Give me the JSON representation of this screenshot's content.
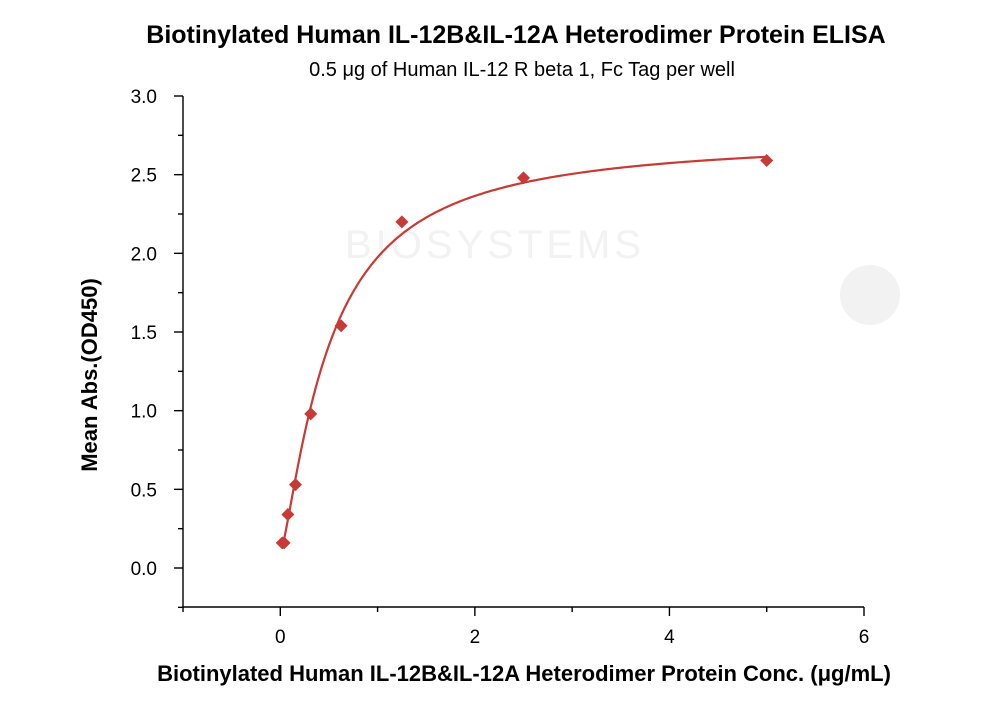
{
  "chart_data": {
    "type": "scatter",
    "title": "Biotinylated Human IL-12B&IL-12A Heterodimer Protein ELISA",
    "subtitle": "0.5 μg of Human IL-12 R beta 1, Fc Tag per well",
    "xlabel": "Biotinylated Human IL-12B&IL-12A Heterodimer Protein Conc. (μg/mL)",
    "ylabel": "Mean Abs.(OD450)",
    "xlim": [
      -1,
      6
    ],
    "ylim": [
      -0.25,
      3.0
    ],
    "xticks": [
      0,
      2,
      4,
      6
    ],
    "xtick_labels": [
      "0",
      "2",
      "4",
      "6"
    ],
    "yticks": [
      0.0,
      0.5,
      1.0,
      1.5,
      2.0,
      2.5,
      3.0
    ],
    "ytick_labels": [
      "0.0",
      "0.5",
      "1.0",
      "1.5",
      "2.0",
      "2.5",
      "3.0"
    ],
    "grid": false,
    "series": [
      {
        "marker": "diamond",
        "color": "#c83a35",
        "x": [
          0.02,
          0.039,
          0.078,
          0.156,
          0.313,
          0.625,
          1.25,
          2.5,
          5.0
        ],
        "y": [
          0.16,
          0.16,
          0.34,
          0.53,
          0.98,
          1.54,
          2.2,
          2.48,
          2.59
        ]
      }
    ],
    "fit_curve": {
      "color": "#c83a35",
      "model": "hyperbolic",
      "bottom": 0.09,
      "top": 2.74,
      "ec50": 0.5,
      "hill": 1.3
    }
  }
}
